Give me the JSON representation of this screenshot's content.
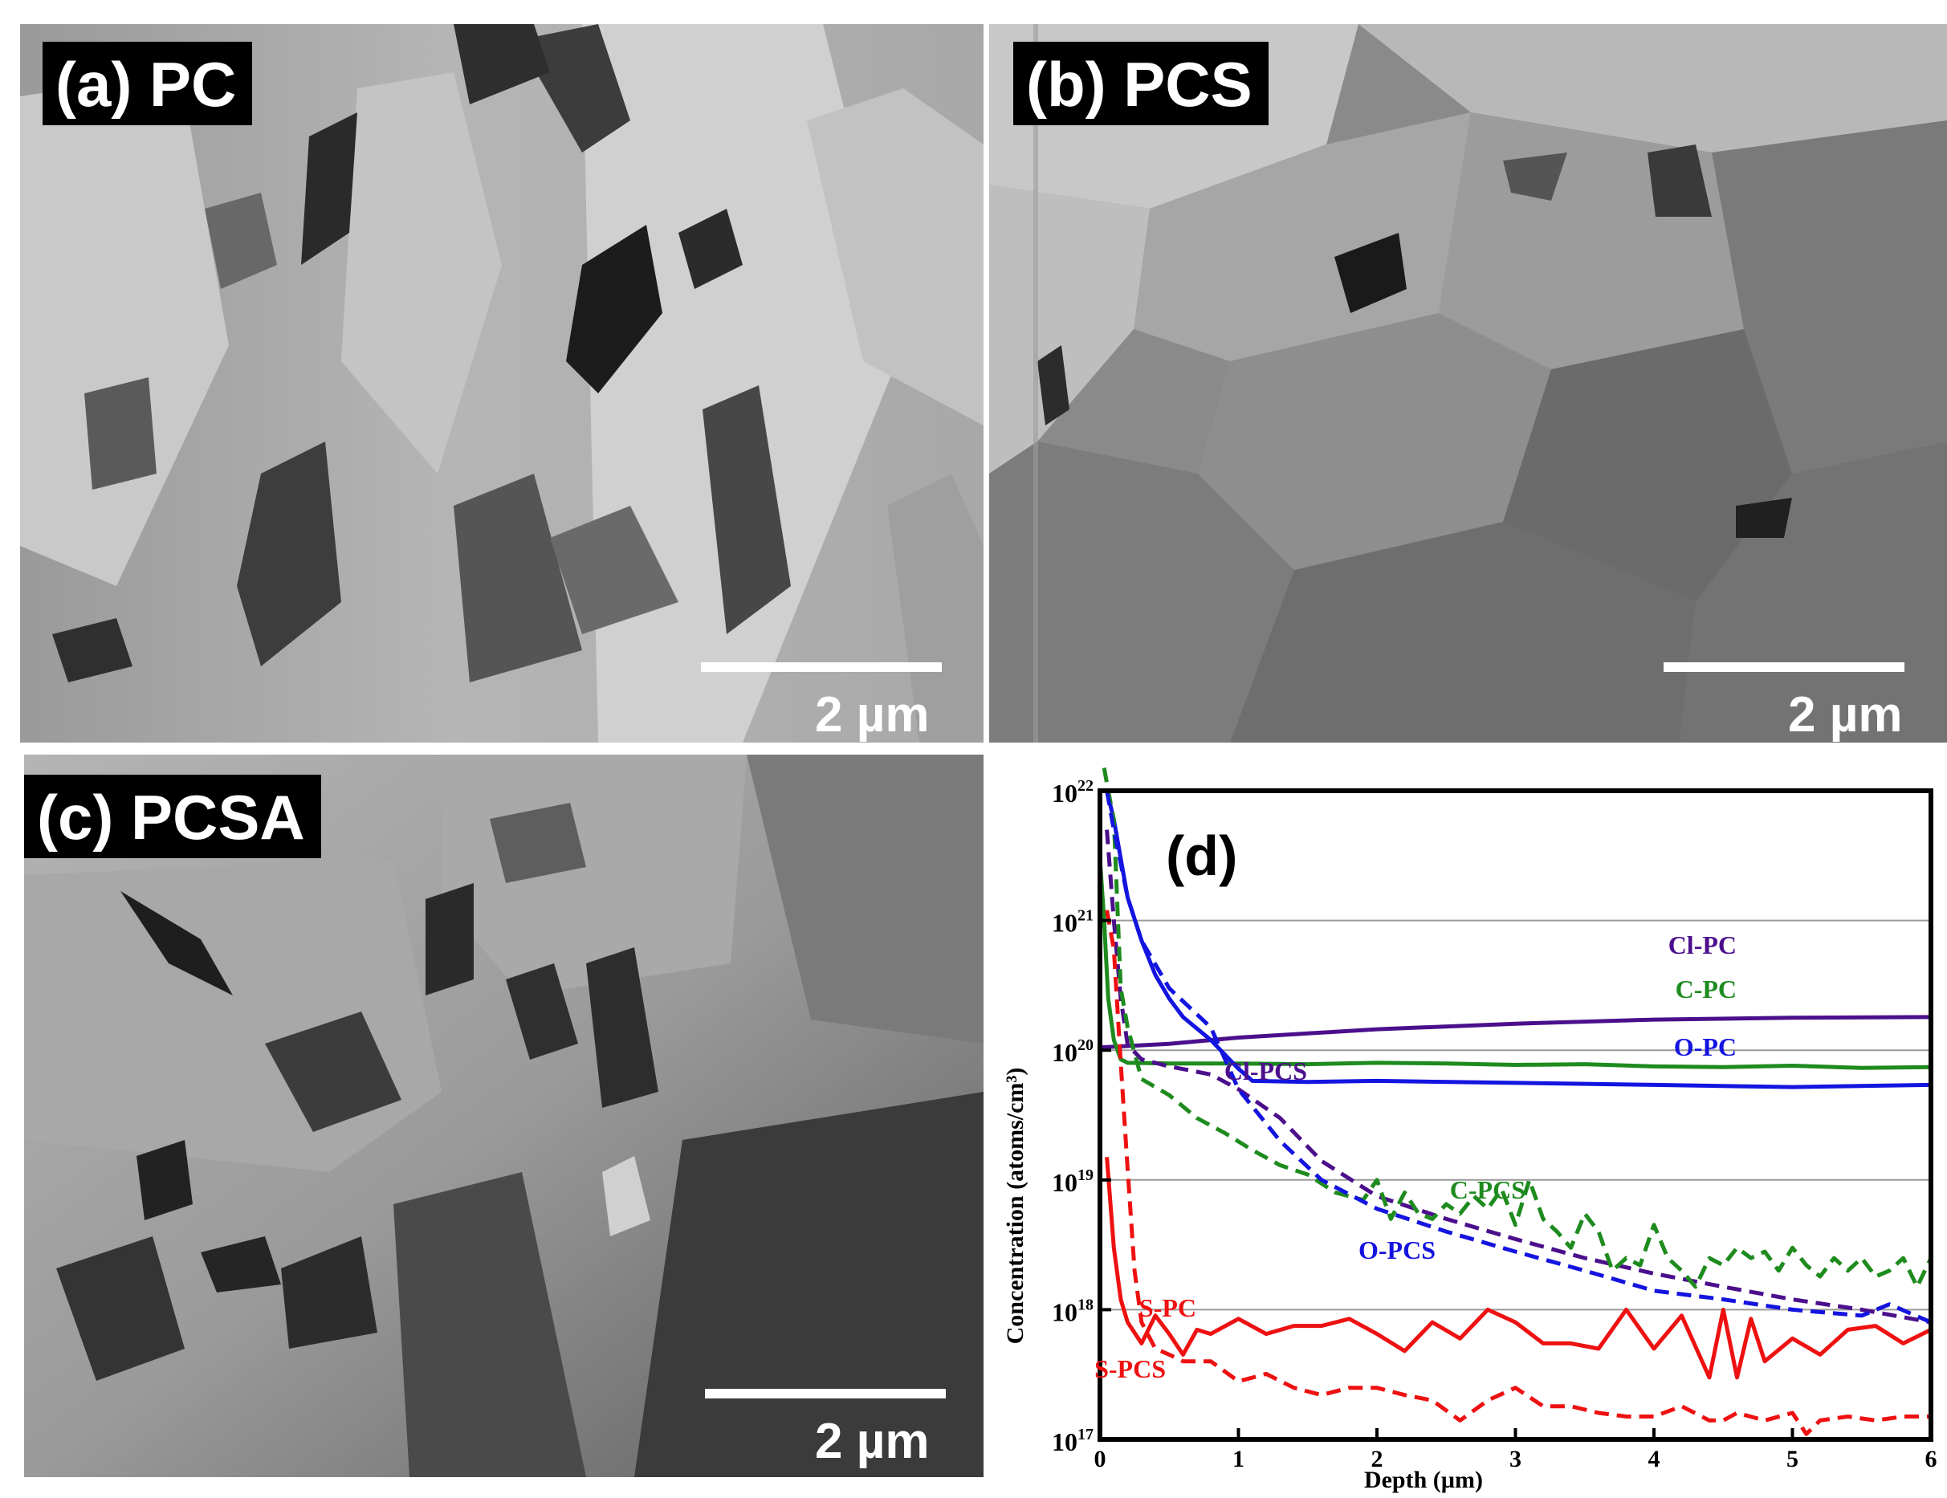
{
  "panels": {
    "a": {
      "label": "(a) PC",
      "scale": "2 µm"
    },
    "b": {
      "label": "(b) PCS",
      "scale": "2 µm"
    },
    "c": {
      "label": "(c) PCSA",
      "scale": "2 µm"
    }
  },
  "chart_data": {
    "type": "line",
    "panel_label": "(d)",
    "xlabel": "Depth (µm)",
    "ylabel": "Concentration (atoms/cm³)",
    "xlim": [
      0,
      6
    ],
    "ylim": [
      1e+17,
      1e+22
    ],
    "yscale": "log",
    "xticks": [
      "0",
      "1",
      "2",
      "3",
      "4",
      "5",
      "6"
    ],
    "yticks": [
      {
        "base": "10",
        "exp": "17"
      },
      {
        "base": "10",
        "exp": "18"
      },
      {
        "base": "10",
        "exp": "19"
      },
      {
        "base": "10",
        "exp": "20"
      },
      {
        "base": "10",
        "exp": "21"
      },
      {
        "base": "10",
        "exp": "22"
      }
    ],
    "grid": "horizontal",
    "series": [
      {
        "name": "Cl-PC",
        "color": "#4b0f8c",
        "dash": false,
        "x": [
          0,
          0.5,
          1,
          2,
          3,
          4,
          5,
          6
        ],
        "y": [
          1.05e+20,
          1.12e+20,
          1.25e+20,
          1.45e+20,
          1.6e+20,
          1.72e+20,
          1.78e+20,
          1.8e+20
        ]
      },
      {
        "name": "C-PC",
        "color": "#1e8b1e",
        "dash": false,
        "x": [
          0,
          0.03,
          0.06,
          0.1,
          0.15,
          0.2,
          0.5,
          1,
          1.5,
          2,
          2.5,
          3,
          3.5,
          4,
          4.5,
          5,
          5.5,
          6
        ],
        "y": [
          3e+21,
          1e+21,
          2.5e+20,
          1.2e+20,
          8.5e+19,
          8e+19,
          7.9e+19,
          7.9e+19,
          7.8e+19,
          8e+19,
          7.9e+19,
          7.7e+19,
          7.8e+19,
          7.5e+19,
          7.4e+19,
          7.6e+19,
          7.3e+19,
          7.4e+19
        ]
      },
      {
        "name": "O-PC",
        "color": "#1414e0",
        "dash": false,
        "x": [
          0.05,
          0.1,
          0.15,
          0.2,
          0.3,
          0.4,
          0.5,
          0.6,
          0.8,
          1,
          1.1,
          1.5,
          2,
          3,
          4,
          5,
          6
        ],
        "y": [
          1e+22,
          6e+21,
          3e+21,
          1.5e+21,
          7e+20,
          3.8e+20,
          2.5e+20,
          1.8e+20,
          1.2e+20,
          7.2e+19,
          5.8e+19,
          5.7e+19,
          5.8e+19,
          5.6e+19,
          5.4e+19,
          5.2e+19,
          5.4e+19
        ]
      },
      {
        "name": "S-PC",
        "color": "#ee1111",
        "dash": false,
        "x": [
          0.05,
          0.1,
          0.15,
          0.2,
          0.3,
          0.4,
          0.5,
          0.6,
          0.7,
          0.8,
          1,
          1.2,
          1.4,
          1.6,
          1.8,
          2,
          2.2,
          2.4,
          2.6,
          2.8,
          3,
          3.2,
          3.4,
          3.6,
          3.8,
          4,
          4.2,
          4.4,
          4.5,
          4.6,
          4.7,
          4.8,
          5,
          5.2,
          5.4,
          5.6,
          5.8,
          6
        ],
        "y": [
          1.5e+19,
          3e+18,
          1.2e+18,
          8e+17,
          5.5e+17,
          9e+17,
          6.5e+17,
          4.5e+17,
          7e+17,
          6.5e+17,
          8.5e+17,
          6.5e+17,
          7.5e+17,
          7.5e+17,
          8.5e+17,
          6.5e+17,
          4.8e+17,
          8e+17,
          6e+17,
          1e+18,
          8e+17,
          5.5e+17,
          5.5e+17,
          5e+17,
          1e+18,
          5e+17,
          9e+17,
          3e+17,
          1e+18,
          3e+17,
          8.5e+17,
          4e+17,
          6e+17,
          4.5e+17,
          7e+17,
          7.5e+17,
          5.5e+17,
          7e+17
        ]
      },
      {
        "name": "Cl-PCS",
        "color": "#4b0f8c",
        "dash": true,
        "x": [
          0.05,
          0.1,
          0.15,
          0.2,
          0.3,
          0.5,
          0.8,
          1,
          1.3,
          1.6,
          2,
          2.5,
          3,
          3.5,
          4,
          4.5,
          5,
          5.5,
          6
        ],
        "y": [
          5e+21,
          1e+21,
          2.5e+20,
          1.1e+20,
          8.5e+19,
          7.5e+19,
          6.5e+19,
          5e+19,
          3e+19,
          1.4e+19,
          7.5e+18,
          5e+18,
          3.5e+18,
          2.5e+18,
          1.9e+18,
          1.5e+18,
          1.2e+18,
          1e+18,
          8e+17
        ]
      },
      {
        "name": "C-PCS",
        "color": "#1e8b1e",
        "dash": true,
        "x": [
          0.03,
          0.06,
          0.1,
          0.15,
          0.2,
          0.3,
          0.5,
          0.7,
          0.9,
          1.1,
          1.3,
          1.5,
          1.7,
          1.9,
          2,
          2.1,
          2.2,
          2.3,
          2.4,
          2.5,
          2.6,
          2.7,
          2.8,
          2.9,
          3,
          3.1,
          3.2,
          3.3,
          3.4,
          3.5,
          3.6,
          3.7,
          3.8,
          3.9,
          4,
          4.1,
          4.2,
          4.3,
          4.4,
          4.5,
          4.6,
          4.7,
          4.8,
          4.9,
          5,
          5.1,
          5.2,
          5.3,
          5.4,
          5.5,
          5.6,
          5.7,
          5.8,
          5.9,
          6
        ],
        "y": [
          1.5e+22,
          1e+22,
          6e+21,
          3e+20,
          1.5e+20,
          6e+19,
          4.5e+19,
          3e+19,
          2.3e+19,
          1.7e+19,
          1.3e+19,
          1.1e+19,
          8e+18,
          7e+18,
          1e+19,
          5e+18,
          8e+18,
          5.5e+18,
          5e+18,
          6.5e+18,
          5.5e+18,
          7.5e+18,
          6e+18,
          8.5e+18,
          4.5e+18,
          1e+19,
          5e+18,
          4e+18,
          3e+18,
          5.5e+18,
          4e+18,
          2e+18,
          2.5e+18,
          2.2e+18,
          4.5e+18,
          2.5e+18,
          2e+18,
          1.5e+18,
          2.5e+18,
          2.2e+18,
          3e+18,
          2.5e+18,
          2.8e+18,
          2e+18,
          3e+18,
          2.2e+18,
          1.8e+18,
          2.5e+18,
          2e+18,
          2.5e+18,
          1.8e+18,
          2e+18,
          2.5e+18,
          1.5e+18,
          2.5e+18
        ]
      },
      {
        "name": "O-PCS",
        "color": "#1414e0",
        "dash": true,
        "x": [
          0.05,
          0.1,
          0.2,
          0.3,
          0.5,
          0.8,
          1,
          1.3,
          1.6,
          2,
          2.5,
          3,
          3.5,
          4,
          4.5,
          5,
          5.5,
          5.7,
          6
        ],
        "y": [
          1e+22,
          5e+21,
          1.5e+21,
          7e+20,
          3e+20,
          1.5e+20,
          5e+19,
          2e+19,
          1e+19,
          6e+18,
          4e+18,
          2.8e+18,
          2e+18,
          1.4e+18,
          1.2e+18,
          1e+18,
          9e+17,
          1.1e+18,
          8e+17
        ]
      },
      {
        "name": "S-PCS",
        "color": "#ee1111",
        "dash": true,
        "x": [
          0.05,
          0.1,
          0.15,
          0.2,
          0.25,
          0.3,
          0.4,
          0.5,
          0.6,
          0.8,
          1,
          1.2,
          1.4,
          1.6,
          1.8,
          2,
          2.2,
          2.4,
          2.6,
          2.8,
          3,
          3.2,
          3.4,
          3.6,
          3.8,
          4,
          4.2,
          4.4,
          4.5,
          4.6,
          4.8,
          5,
          5.1,
          5.2,
          5.4,
          5.6,
          5.8,
          6
        ],
        "y": [
          1.2e+21,
          6e+20,
          8e+19,
          1.2e+19,
          2e+18,
          8e+17,
          5e+17,
          4.5e+17,
          4e+17,
          4e+17,
          2.8e+17,
          3.2e+17,
          2.5e+17,
          2.2e+17,
          2.5e+17,
          2.5e+17,
          2.2e+17,
          2e+17,
          1.4e+17,
          2e+17,
          2.5e+17,
          1.8e+17,
          1.8e+17,
          1.6e+17,
          1.5e+17,
          1.5e+17,
          1.8e+17,
          1.4e+17,
          1.4e+17,
          1.6e+17,
          1.4e+17,
          1.6e+17,
          1.1e+17,
          1.4e+17,
          1.5e+17,
          1.4e+17,
          1.5e+17,
          1.5e+17
        ]
      }
    ],
    "annotations": [
      {
        "text": "Cl-PC",
        "color": "#4b0f8c"
      },
      {
        "text": "C-PC",
        "color": "#1e8b1e"
      },
      {
        "text": "O-PC",
        "color": "#1414e0"
      },
      {
        "text": "Cl-PCS",
        "color": "#4b0f8c"
      },
      {
        "text": "C-PCS",
        "color": "#1e8b1e"
      },
      {
        "text": "O-PCS",
        "color": "#1414e0"
      },
      {
        "text": "S-PC",
        "color": "#ee1111"
      },
      {
        "text": "S-PCS",
        "color": "#ee1111"
      }
    ]
  }
}
